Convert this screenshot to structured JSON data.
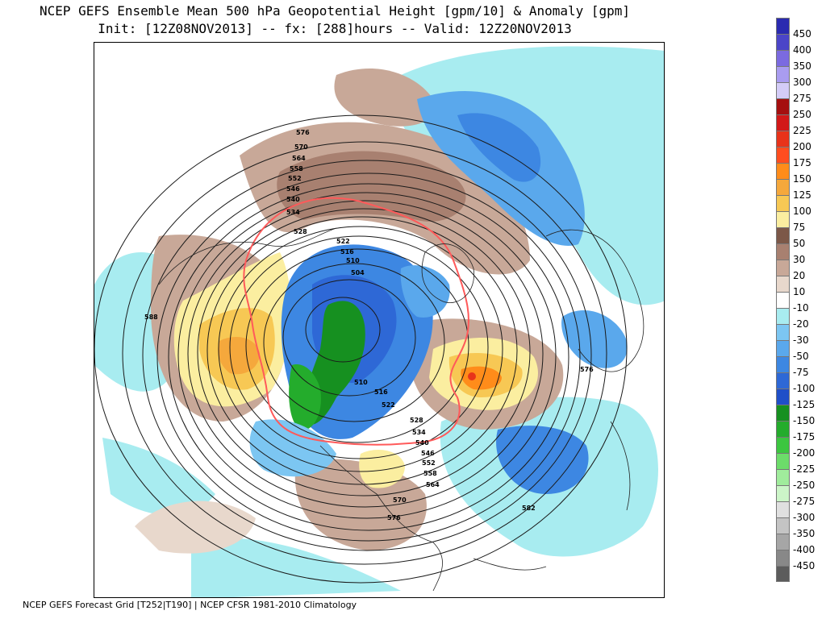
{
  "title_line_1": "NCEP GEFS Ensemble Mean 500 hPa Geopotential Height [gpm/10] & Anomaly [gpm]",
  "title_line_2": "Init: [12Z08NOV2013] -- fx: [288]hours -- Valid: 12Z20NOV2013",
  "footer": "NCEP GEFS Forecast Grid [T252|T190] | NCEP CFSR 1981-2010 Climatology",
  "colors": {
    "contour_line": "#1a1a1a",
    "highlight_contour": "#ff5a5a",
    "coastline": "#222222"
  },
  "legend": {
    "entries": [
      {
        "label": "450",
        "color": "#2a2ab0"
      },
      {
        "label": "400",
        "color": "#4b45c8"
      },
      {
        "label": "350",
        "color": "#7b6ae0"
      },
      {
        "label": "300",
        "color": "#a99cf0"
      },
      {
        "label": "275",
        "color": "#d4ccf7"
      },
      {
        "label": "250",
        "color": "#a50f0f"
      },
      {
        "label": "225",
        "color": "#d21818"
      },
      {
        "label": "200",
        "color": "#e8331a"
      },
      {
        "label": "175",
        "color": "#ff4d1f"
      },
      {
        "label": "150",
        "color": "#ff8c1a"
      },
      {
        "label": "125",
        "color": "#f5a83c"
      },
      {
        "label": "100",
        "color": "#f7c854"
      },
      {
        "label": "75",
        "color": "#fbeea0"
      },
      {
        "label": "50",
        "color": "#7c5848"
      },
      {
        "label": "30",
        "color": "#a88070"
      },
      {
        "label": "20",
        "color": "#c8a898"
      },
      {
        "label": "10",
        "color": "#e8d8cc"
      },
      {
        "label": "-10",
        "color": "#ffffff"
      },
      {
        "label": "-20",
        "color": "#a8ecf0"
      },
      {
        "label": "-30",
        "color": "#7cc6f2"
      },
      {
        "label": "-50",
        "color": "#5aa8ec"
      },
      {
        "label": "-75",
        "color": "#3d87e2"
      },
      {
        "label": "-100",
        "color": "#2e68d6"
      },
      {
        "label": "-125",
        "color": "#1f4fc8"
      },
      {
        "label": "-150",
        "color": "#169020"
      },
      {
        "label": "-175",
        "color": "#24ac2c"
      },
      {
        "label": "-200",
        "color": "#3cc640"
      },
      {
        "label": "-225",
        "color": "#6cdc6a"
      },
      {
        "label": "-250",
        "color": "#a0ec9c"
      },
      {
        "label": "-275",
        "color": "#ccf5c8"
      },
      {
        "label": "-300",
        "color": "#e0e0e0"
      },
      {
        "label": "-350",
        "color": "#c4c4c4"
      },
      {
        "label": "-400",
        "color": "#a6a6a6"
      },
      {
        "label": "-450",
        "color": "#888888"
      },
      {
        "label": "",
        "color": "#5c5c5c"
      }
    ]
  },
  "contour_labels": [
    "576",
    "570",
    "564",
    "558",
    "552",
    "546",
    "540",
    "534",
    "528",
    "522",
    "516",
    "510",
    "504",
    "588",
    "510",
    "516",
    "522",
    "528",
    "534",
    "540",
    "546",
    "552",
    "558",
    "564",
    "570",
    "576",
    "576",
    "582"
  ]
}
